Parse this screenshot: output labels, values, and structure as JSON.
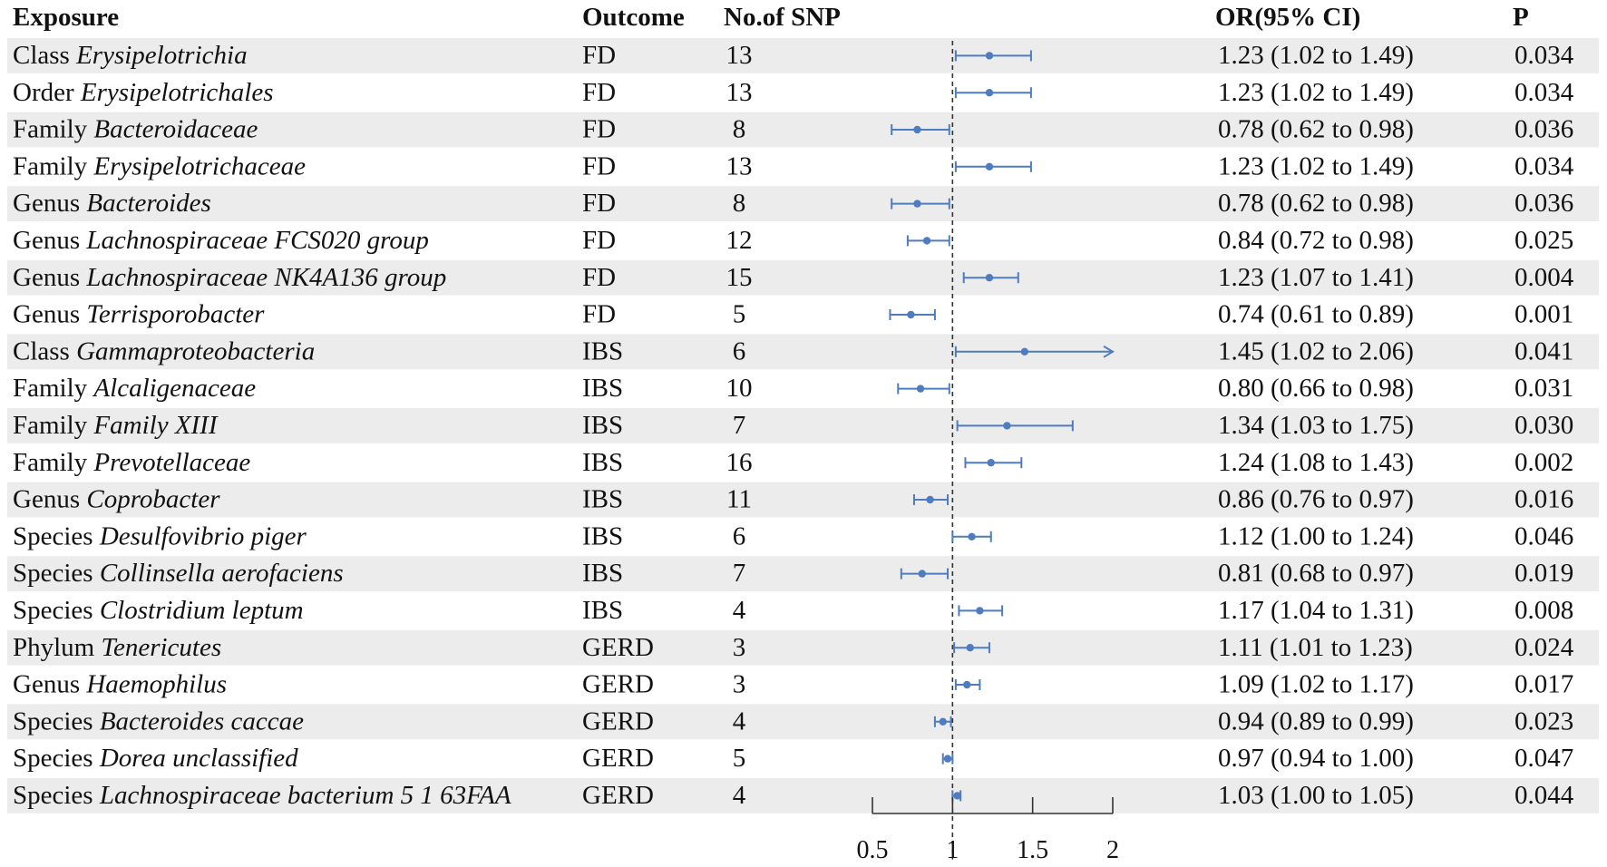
{
  "headers": {
    "exposure": "Exposure",
    "outcome": "Outcome",
    "nsnp": "No.of SNP",
    "or": "OR(95% CI)",
    "p": "P"
  },
  "colors": {
    "marker": "#4f7bbf",
    "stripe": "#ececec",
    "text": "#111111",
    "refline": "#333333"
  },
  "rows": [
    {
      "rank": "Class",
      "taxon": "Erysipelotrichia",
      "outcome": "FD",
      "nsnp": "13",
      "or_text": "1.23 (1.02 to 1.49)",
      "p": "0.034"
    },
    {
      "rank": "Order",
      "taxon": "Erysipelotrichales",
      "outcome": "FD",
      "nsnp": "13",
      "or_text": "1.23 (1.02 to 1.49)",
      "p": "0.034"
    },
    {
      "rank": "Family",
      "taxon": "Bacteroidaceae",
      "outcome": "FD",
      "nsnp": "8",
      "or_text": "0.78 (0.62 to 0.98)",
      "p": "0.036"
    },
    {
      "rank": "Family",
      "taxon": "Erysipelotrichaceae",
      "outcome": "FD",
      "nsnp": "13",
      "or_text": "1.23 (1.02 to 1.49)",
      "p": "0.034"
    },
    {
      "rank": "Genus",
      "taxon": "Bacteroides",
      "outcome": "FD",
      "nsnp": "8",
      "or_text": "0.78 (0.62 to 0.98)",
      "p": "0.036"
    },
    {
      "rank": "Genus",
      "taxon": "Lachnospiraceae FCS020 group",
      "outcome": "FD",
      "nsnp": "12",
      "or_text": "0.84 (0.72 to 0.98)",
      "p": "0.025"
    },
    {
      "rank": "Genus",
      "taxon": "Lachnospiraceae NK4A136 group",
      "outcome": "FD",
      "nsnp": "15",
      "or_text": "1.23 (1.07 to 1.41)",
      "p": "0.004"
    },
    {
      "rank": "Genus",
      "taxon": "Terrisporobacter",
      "outcome": "FD",
      "nsnp": "5",
      "or_text": "0.74 (0.61 to 0.89)",
      "p": "0.001"
    },
    {
      "rank": "Class",
      "taxon": "Gammaproteobacteria",
      "outcome": "IBS",
      "nsnp": "6",
      "or_text": "1.45 (1.02 to 2.06)",
      "p": "0.041"
    },
    {
      "rank": "Family",
      "taxon": "Alcaligenaceae",
      "outcome": "IBS",
      "nsnp": "10",
      "or_text": "0.80 (0.66 to 0.98)",
      "p": "0.031"
    },
    {
      "rank": "Family",
      "taxon": "Family XIII",
      "outcome": "IBS",
      "nsnp": "7",
      "or_text": "1.34 (1.03 to 1.75)",
      "p": "0.030"
    },
    {
      "rank": "Family",
      "taxon": "Prevotellaceae",
      "outcome": "IBS",
      "nsnp": "16",
      "or_text": "1.24 (1.08 to 1.43)",
      "p": "0.002"
    },
    {
      "rank": "Genus",
      "taxon": "Coprobacter",
      "outcome": "IBS",
      "nsnp": "11",
      "or_text": "0.86 (0.76 to 0.97)",
      "p": "0.016"
    },
    {
      "rank": "Species",
      "taxon": "Desulfovibrio piger",
      "outcome": "IBS",
      "nsnp": "6",
      "or_text": "1.12 (1.00 to 1.24)",
      "p": "0.046"
    },
    {
      "rank": "Species",
      "taxon": "Collinsella aerofaciens",
      "outcome": "IBS",
      "nsnp": "7",
      "or_text": "0.81 (0.68 to 0.97)",
      "p": "0.019"
    },
    {
      "rank": "Species",
      "taxon": "Clostridium leptum",
      "outcome": "IBS",
      "nsnp": "4",
      "or_text": "1.17 (1.04 to 1.31)",
      "p": "0.008"
    },
    {
      "rank": "Phylum",
      "taxon": "Tenericutes",
      "outcome": "GERD",
      "nsnp": "3",
      "or_text": "1.11 (1.01 to 1.23)",
      "p": "0.024"
    },
    {
      "rank": "Genus",
      "taxon": "Haemophilus",
      "outcome": "GERD",
      "nsnp": "3",
      "or_text": "1.09 (1.02 to 1.17)",
      "p": "0.017"
    },
    {
      "rank": "Species",
      "taxon": "Bacteroides caccae",
      "outcome": "GERD",
      "nsnp": "4",
      "or_text": "0.94 (0.89 to 0.99)",
      "p": "0.023"
    },
    {
      "rank": "Species",
      "taxon": "Dorea unclassified",
      "outcome": "GERD",
      "nsnp": "5",
      "or_text": "0.97 (0.94 to 1.00)",
      "p": "0.047"
    },
    {
      "rank": "Species",
      "taxon": "Lachnospiraceae bacterium 5 1 63FAA",
      "outcome": "GERD",
      "nsnp": "4",
      "or_text": "1.03 (1.00 to 1.05)",
      "p": "0.044"
    }
  ],
  "chart_data": {
    "type": "forest",
    "title": "",
    "xlabel": "",
    "ylabel": "",
    "reference_value": 1,
    "xlim": [
      0.5,
      2
    ],
    "xticks": [
      0.5,
      1,
      1.5,
      2
    ],
    "xtick_labels": [
      "0.5",
      "1",
      "1.5",
      "2"
    ],
    "series": [
      {
        "name": "OR",
        "values": [
          1.23,
          1.23,
          0.78,
          1.23,
          0.78,
          0.84,
          1.23,
          0.74,
          1.45,
          0.8,
          1.34,
          1.24,
          0.86,
          1.12,
          0.81,
          1.17,
          1.11,
          1.09,
          0.94,
          0.97,
          1.03
        ],
        "lower": [
          1.02,
          1.02,
          0.62,
          1.02,
          0.62,
          0.72,
          1.07,
          0.61,
          1.02,
          0.66,
          1.03,
          1.08,
          0.76,
          1.0,
          0.68,
          1.04,
          1.01,
          1.02,
          0.89,
          0.94,
          1.0
        ],
        "upper": [
          1.49,
          1.49,
          0.98,
          1.49,
          0.98,
          0.98,
          1.41,
          0.89,
          2.06,
          0.98,
          1.75,
          1.43,
          0.97,
          1.24,
          0.97,
          1.31,
          1.23,
          1.17,
          0.99,
          1.0,
          1.05
        ],
        "upper_clipped": [
          false,
          false,
          false,
          false,
          false,
          false,
          false,
          false,
          true,
          false,
          false,
          false,
          false,
          false,
          false,
          false,
          false,
          false,
          false,
          false,
          false
        ]
      }
    ]
  }
}
